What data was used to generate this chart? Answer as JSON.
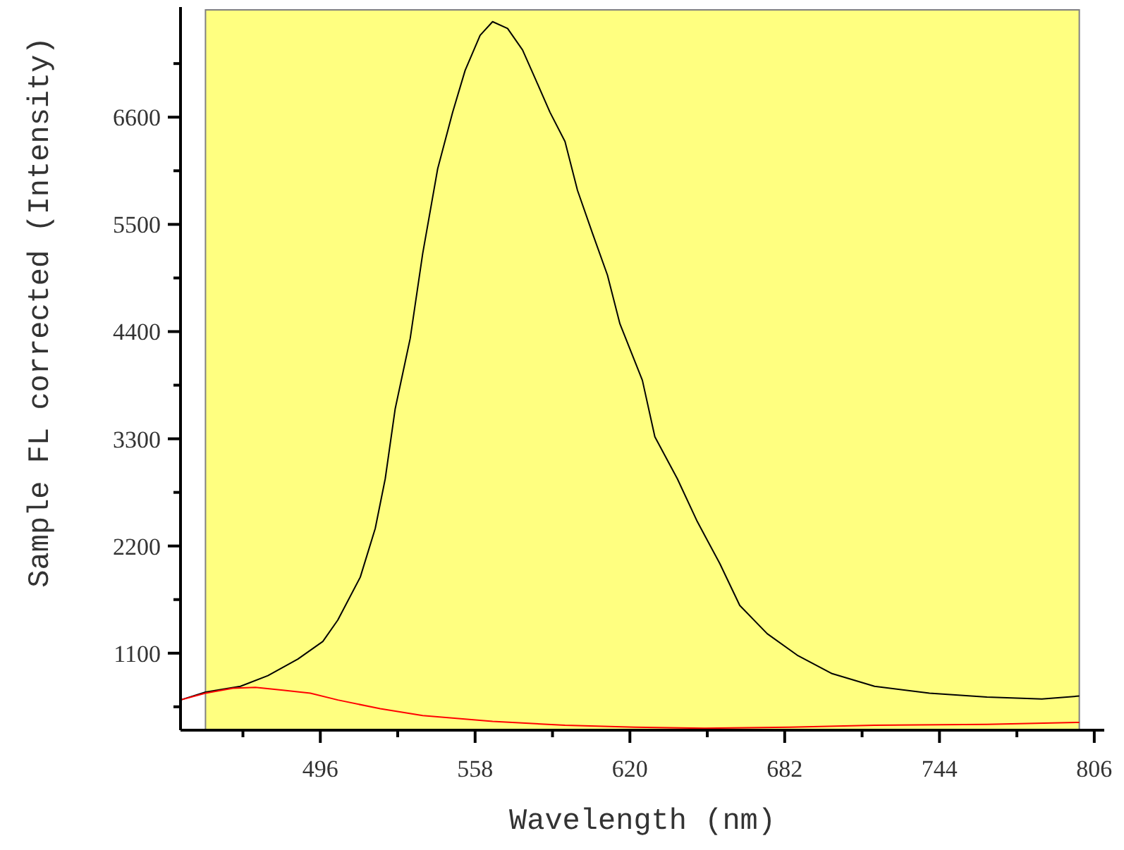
{
  "chart_data": {
    "type": "line",
    "xlabel": "Wavelength (nm)",
    "ylabel": "Sample FL corrected (Intensity)",
    "xlim": [
      440,
      810
    ],
    "ylim": [
      310,
      7730
    ],
    "xticks": [
      {
        "value": 465,
        "label": null
      },
      496,
      {
        "value": 527,
        "label": null
      },
      558,
      {
        "value": 589,
        "label": null
      },
      620,
      {
        "value": 651,
        "label": null
      },
      682,
      {
        "value": 713,
        "label": null
      },
      744,
      {
        "value": 775,
        "label": null
      },
      806
    ],
    "yticks": [
      {
        "value": 550,
        "label": null
      },
      1100,
      {
        "value": 1650,
        "label": null
      },
      2200,
      {
        "value": 2750,
        "label": null
      },
      3300,
      {
        "value": 3850,
        "label": null
      },
      4400,
      {
        "value": 4950,
        "label": null
      },
      5500,
      {
        "value": 6050,
        "label": null
      },
      6600,
      {
        "value": 7150,
        "label": null
      }
    ],
    "bands": [
      {
        "axis": "x",
        "from": 450,
        "to": 800,
        "color": "#ffff80"
      }
    ],
    "marker": "none",
    "line_style": "solid",
    "series": [
      {
        "color": "#000000",
        "x": [
          440,
          450,
          464,
          475,
          487,
          497,
          503,
          512,
          518,
          522,
          526,
          532,
          537,
          543,
          549,
          554,
          560,
          565,
          571,
          577,
          582,
          588,
          594,
          599,
          605,
          611,
          616,
          625,
          630,
          639,
          647,
          656,
          664,
          675,
          687,
          701,
          718,
          740,
          763,
          785,
          800
        ],
        "values": [
          620,
          700,
          760,
          870,
          1040,
          1220,
          1440,
          1880,
          2380,
          2890,
          3610,
          4330,
          5200,
          6070,
          6650,
          7080,
          7440,
          7580,
          7510,
          7290,
          7000,
          6650,
          6350,
          5850,
          5410,
          4980,
          4480,
          3900,
          3320,
          2890,
          2450,
          2020,
          1590,
          1300,
          1080,
          890,
          760,
          690,
          650,
          630,
          660
        ]
      },
      {
        "color": "#ff0000",
        "x": [
          440,
          450,
          461,
          470,
          481,
          492,
          503,
          520,
          537,
          565,
          594,
          622,
          650,
          684,
          718,
          763,
          800
        ],
        "values": [
          620,
          690,
          740,
          750,
          720,
          690,
          620,
          530,
          460,
          400,
          360,
          340,
          330,
          340,
          360,
          370,
          390
        ]
      }
    ]
  }
}
